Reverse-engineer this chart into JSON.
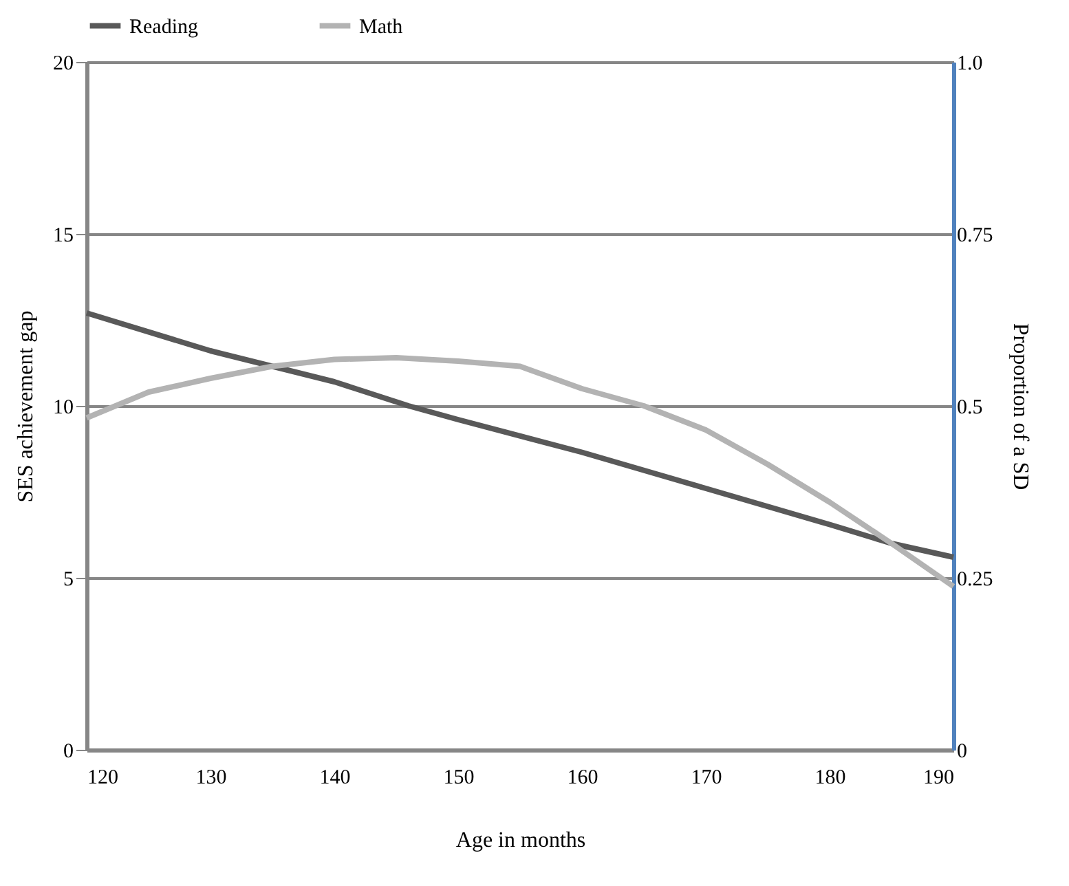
{
  "chart_data": {
    "type": "line",
    "xlabel": "Age in months",
    "ylabel": "SES achievement gap",
    "y2label": "Proportion of a SD",
    "xlim": [
      120,
      190
    ],
    "xticks": [
      120,
      130,
      140,
      150,
      160,
      170,
      180,
      190
    ],
    "ylim": [
      0,
      20
    ],
    "yticks": [
      0,
      5,
      10,
      15,
      20
    ],
    "y2lim": [
      0,
      1
    ],
    "y2ticks": [
      0,
      0.25,
      0.5,
      0.75,
      {
        "value": 1,
        "label": "1.0"
      }
    ],
    "grid": "y",
    "legend": "top",
    "marker": "none",
    "line_style": "solid",
    "series": [
      {
        "name": "Reading",
        "color": "#595959",
        "x": [
          120,
          130,
          140,
          146,
          150,
          160,
          170,
          180,
          185,
          190
        ],
        "values": [
          12.7,
          11.6,
          10.7,
          10.0,
          9.6,
          8.65,
          7.6,
          6.55,
          6.0,
          5.6
        ]
      },
      {
        "name": "Math",
        "color": "#b3b3b3",
        "x": [
          120,
          125,
          130,
          135,
          140,
          145,
          150,
          155,
          160,
          165,
          170,
          175,
          180,
          185,
          190
        ],
        "values": [
          9.65,
          10.4,
          10.8,
          11.15,
          11.35,
          11.4,
          11.3,
          11.15,
          10.5,
          10.0,
          9.3,
          8.3,
          7.2,
          6.0,
          4.75
        ]
      }
    ]
  }
}
